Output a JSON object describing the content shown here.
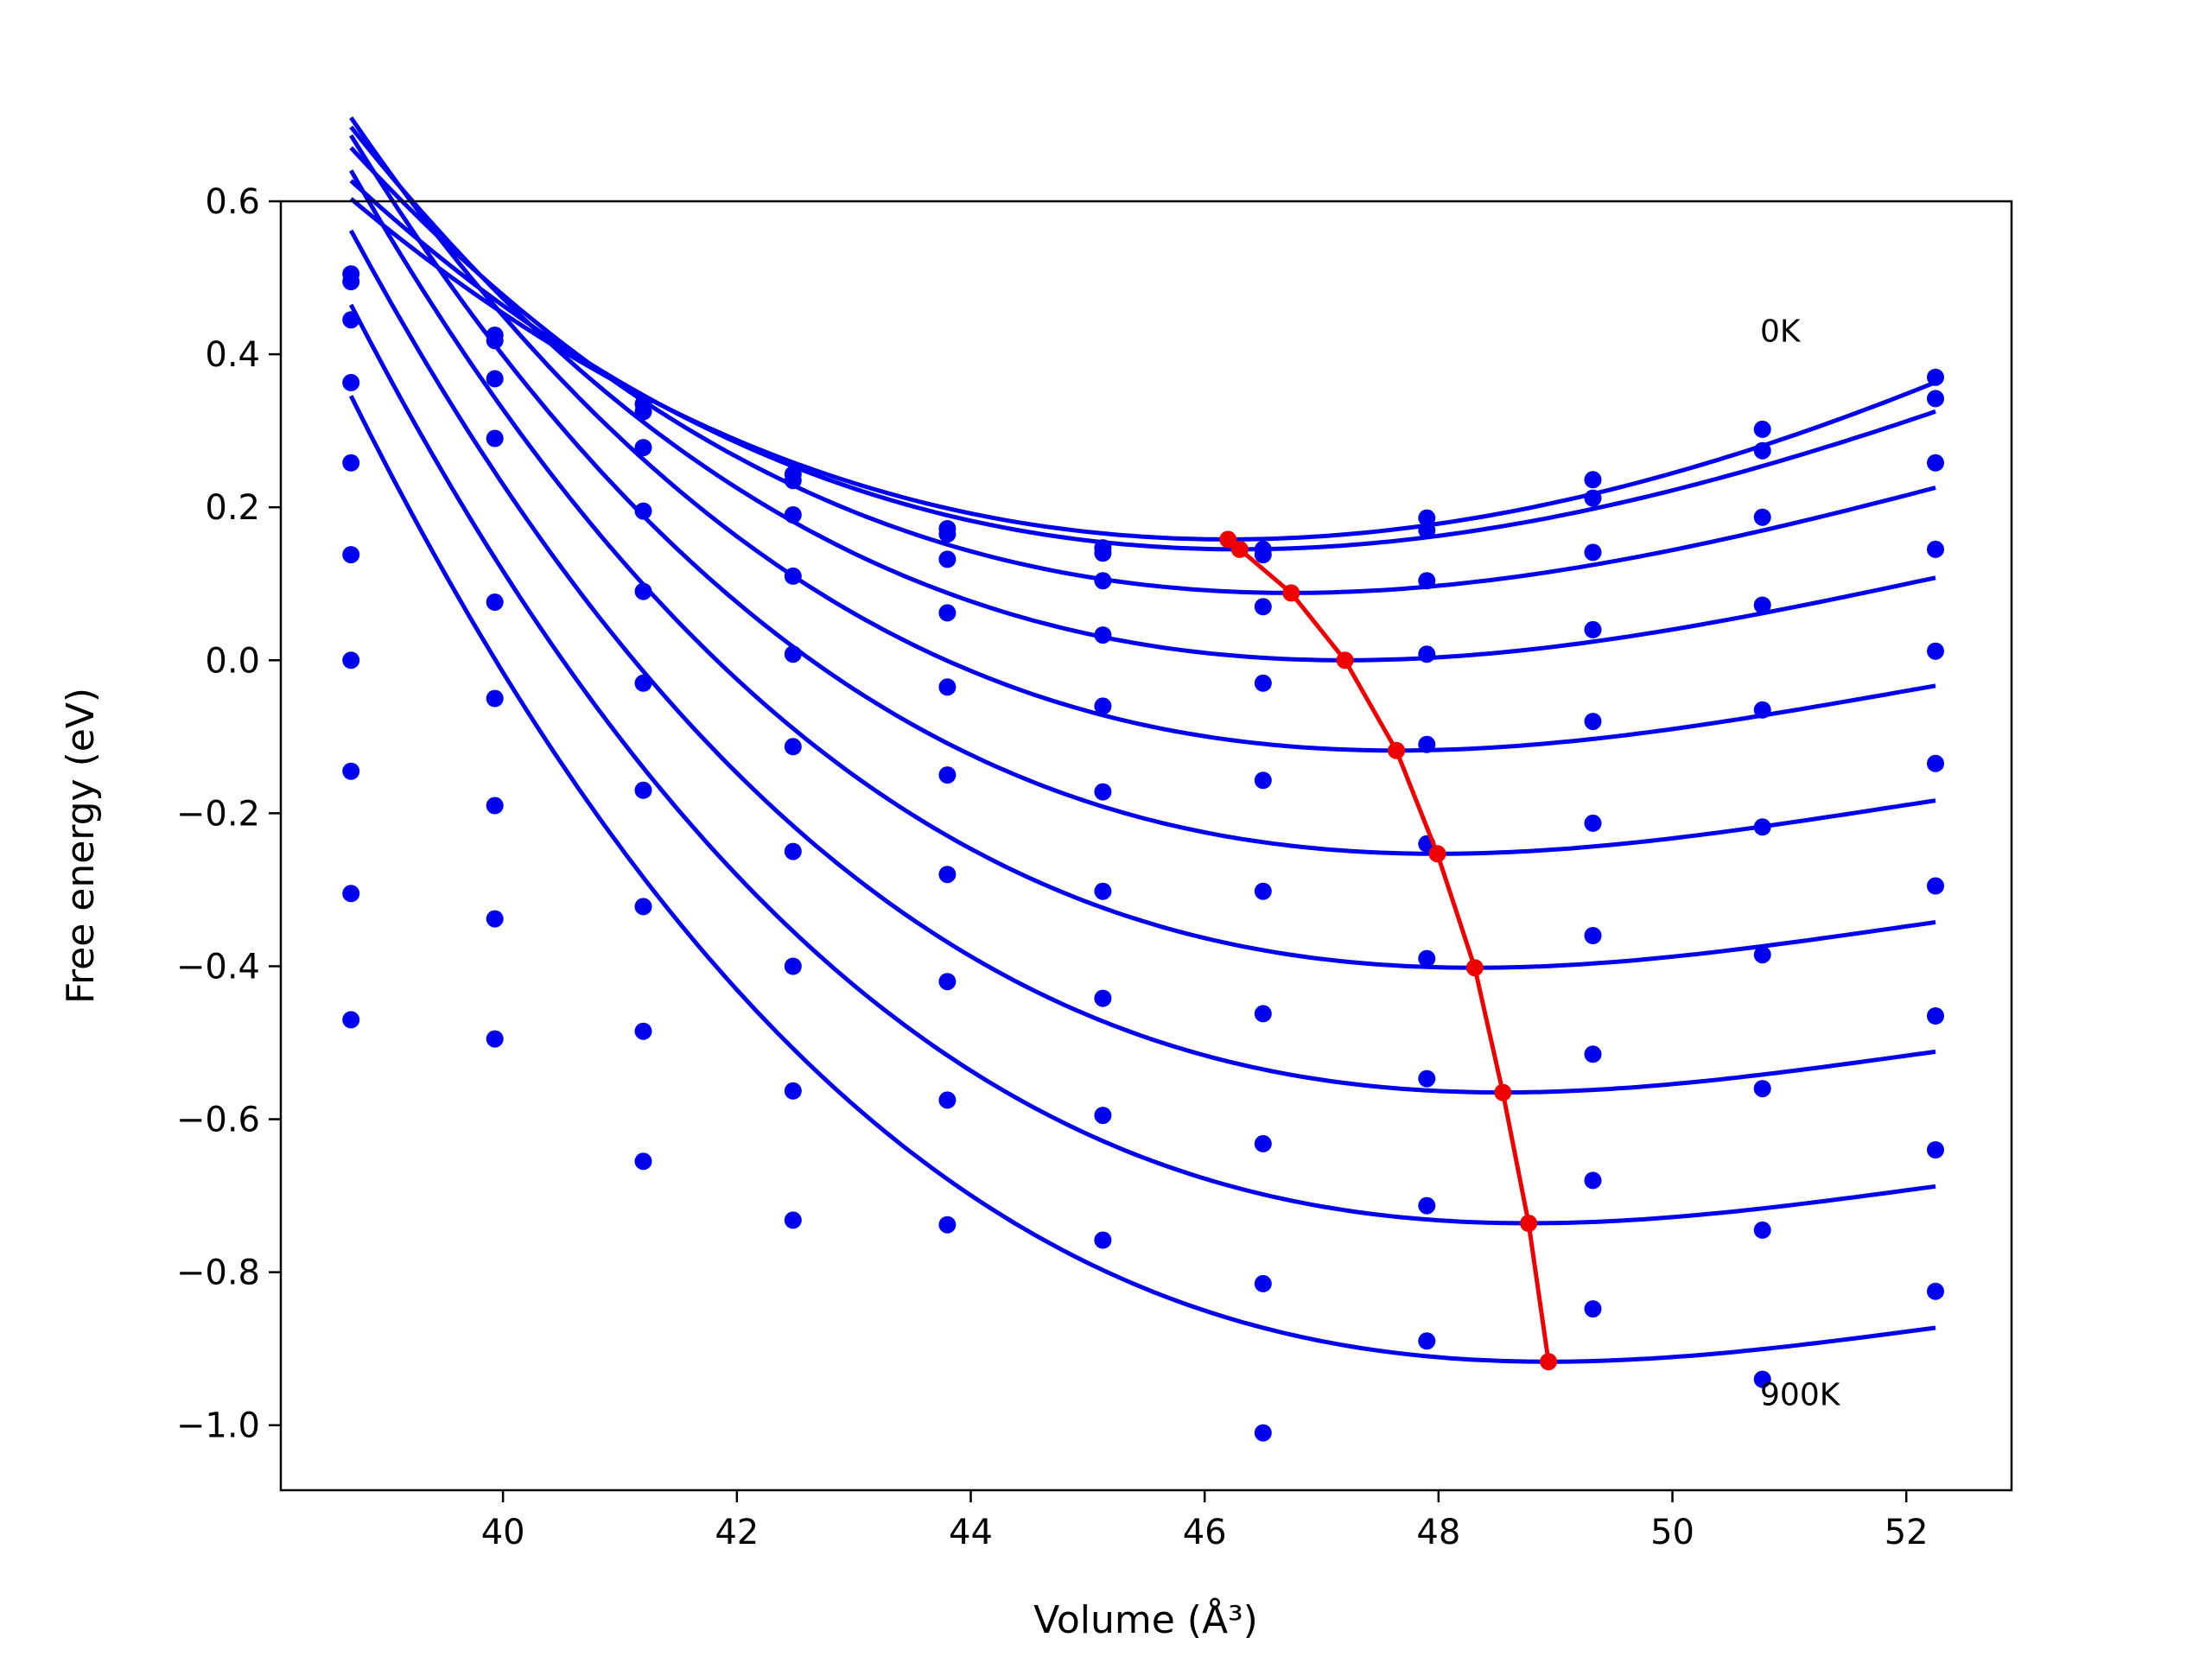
{
  "chart_data": {
    "type": "scatter",
    "xlabel": "Volume (Å³)",
    "ylabel": "Free energy (eV)",
    "xlim": [
      38.1,
      52.9
    ],
    "ylim": [
      -1.085,
      0.6
    ],
    "x_ticks": [
      40,
      42,
      44,
      46,
      48,
      50,
      52
    ],
    "y_ticks": [
      0.6,
      0.4,
      0.2,
      0.0,
      -0.2,
      -0.4,
      -0.6,
      -0.8,
      -1.0
    ],
    "x_tick_labels": [
      "40",
      "42",
      "44",
      "46",
      "48",
      "50",
      "52"
    ],
    "y_tick_labels": [
      "0.6",
      "0.4",
      "0.2",
      "0.0",
      "−0.2",
      "−0.4",
      "−0.6",
      "−0.8",
      "−1.0"
    ],
    "grid": false,
    "annotations": [
      {
        "text": "0K",
        "x": 50.75,
        "y": 0.43
      },
      {
        "text": "900K",
        "x": 50.75,
        "y": -0.96
      }
    ],
    "volumes": [
      38.7,
      39.93,
      41.2,
      42.48,
      43.8,
      45.13,
      46.5,
      47.9,
      49.32,
      50.77,
      52.25
    ],
    "series": [
      {
        "points": [
          0.505,
          0.425,
          0.335,
          0.243,
          0.172,
          0.147,
          0.145,
          0.186,
          0.236,
          0.302,
          0.37
        ],
        "fit": {
          "vmin": 46.2,
          "emin": 0.158,
          "a": 0.00664,
          "b": -0.00017
        }
      },
      {
        "points": [
          0.495,
          0.418,
          0.325,
          0.235,
          0.165,
          0.14,
          0.138,
          0.17,
          0.212,
          0.274,
          0.342
        ],
        "fit": {
          "vmin": 46.3,
          "emin": 0.145,
          "a": 0.00652,
          "b": -0.00024
        }
      },
      {
        "points": [
          0.445,
          0.368,
          0.278,
          0.19,
          0.132,
          0.104,
          0.07,
          0.104,
          0.141,
          0.187,
          0.258
        ],
        "fit": {
          "vmin": 46.74,
          "emin": 0.088,
          "a": 0.00635,
          "b": -0.00033
        }
      },
      {
        "points": [
          0.363,
          0.29,
          0.195,
          0.11,
          0.062,
          0.033,
          -0.03,
          0.008,
          0.04,
          0.072,
          0.145
        ],
        "fit": {
          "vmin": 47.2,
          "emin": 0.0,
          "a": 0.00625,
          "b": -0.0004
        }
      },
      {
        "points": [
          0.258,
          0.076,
          0.09,
          0.008,
          -0.035,
          -0.06,
          -0.157,
          -0.11,
          -0.08,
          -0.065,
          0.012
        ],
        "fit": {
          "vmin": 47.64,
          "emin": -0.118,
          "a": 0.00615,
          "b": -0.00047
        }
      },
      {
        "points": [
          0.138,
          -0.05,
          -0.03,
          -0.113,
          -0.15,
          -0.172,
          -0.302,
          -0.24,
          -0.213,
          -0.218,
          -0.135
        ],
        "fit": {
          "vmin": 47.99,
          "emin": -0.253,
          "a": 0.00605,
          "b": -0.00052
        }
      },
      {
        "points": [
          0.0,
          -0.19,
          -0.17,
          -0.25,
          -0.28,
          -0.302,
          -0.462,
          -0.39,
          -0.36,
          -0.385,
          -0.295
        ],
        "fit": {
          "vmin": 48.31,
          "emin": -0.402,
          "a": 0.006,
          "b": -0.00055
        }
      },
      {
        "points": [
          -0.145,
          -0.338,
          -0.322,
          -0.4,
          -0.42,
          -0.442,
          -0.632,
          -0.547,
          -0.515,
          -0.56,
          -0.465
        ],
        "fit": {
          "vmin": 48.55,
          "emin": -0.565,
          "a": 0.006,
          "b": -0.00057
        }
      },
      {
        "points": [
          -0.305,
          -0.495,
          -0.485,
          -0.563,
          -0.575,
          -0.595,
          -0.815,
          -0.713,
          -0.68,
          -0.745,
          -0.64
        ],
        "fit": {
          "vmin": 48.77,
          "emin": -0.736,
          "a": 0.006,
          "b": -0.00058
        }
      },
      {
        "points": [
          -0.47,
          null,
          -0.655,
          -0.732,
          -0.738,
          -0.758,
          -1.01,
          -0.89,
          -0.848,
          -0.94,
          -0.825
        ],
        "fit": {
          "vmin": 48.94,
          "emin": -0.917,
          "a": 0.006,
          "b": -0.00059
        }
      }
    ],
    "minima": {
      "x": [
        46.2,
        46.3,
        46.74,
        47.2,
        47.64,
        47.99,
        48.31,
        48.55,
        48.77,
        48.94
      ],
      "y": [
        0.158,
        0.145,
        0.088,
        0.0,
        -0.118,
        -0.253,
        -0.402,
        -0.565,
        -0.736,
        -0.917
      ]
    },
    "colors": {
      "fit": "#0000ee",
      "points": "#0000ee",
      "minima": "#ee0000"
    }
  }
}
